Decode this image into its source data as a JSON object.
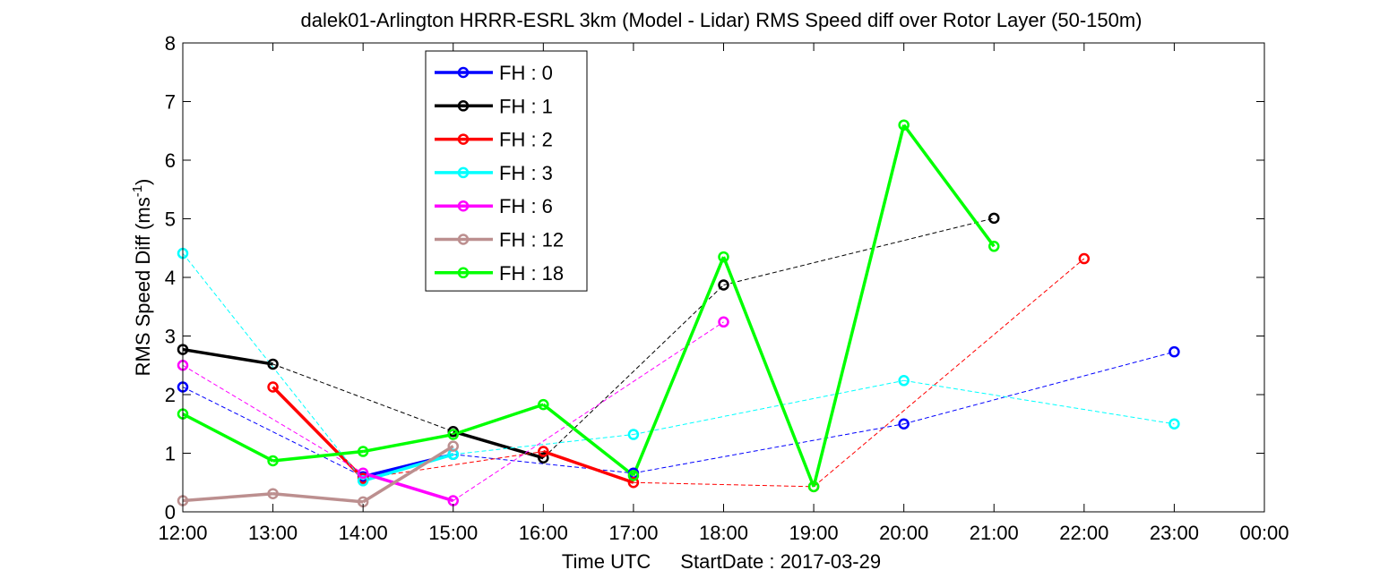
{
  "chart_data": {
    "type": "line",
    "title": "dalek01-Arlington HRRR-ESRL 3km (Model - Lidar) RMS Speed diff over Rotor Layer (50-150m)",
    "xlabel_prefix": "Time UTC",
    "xlabel_date": "StartDate : 2017-03-29",
    "ylabel": "RMS Speed Diff (ms",
    "ylabel_sup": "-1",
    "ylabel_end": ")",
    "xlim": [
      12,
      24
    ],
    "ylim": [
      0,
      8
    ],
    "xticks": [
      12,
      13,
      14,
      15,
      16,
      17,
      18,
      19,
      20,
      21,
      22,
      23,
      24
    ],
    "xtick_labels": [
      "12:00",
      "13:00",
      "14:00",
      "15:00",
      "16:00",
      "17:00",
      "18:00",
      "19:00",
      "20:00",
      "21:00",
      "22:00",
      "23:00",
      "00:00"
    ],
    "yticks": [
      0,
      1,
      2,
      3,
      4,
      5,
      6,
      7,
      8
    ],
    "ytick_labels": [
      "0",
      "1",
      "2",
      "3",
      "4",
      "5",
      "6",
      "7",
      "8"
    ],
    "grid": false,
    "legend_position": "top-left",
    "series": [
      {
        "name": "FH : 0",
        "color": "#0000ff",
        "x": [
          12,
          14,
          15,
          17,
          20,
          23
        ],
        "y": [
          2.13,
          0.6,
          0.98,
          0.66,
          1.5,
          2.73
        ],
        "solid": [
          false,
          true,
          false,
          false,
          false
        ]
      },
      {
        "name": "FH : 1",
        "color": "#000000",
        "x": [
          12,
          13,
          15,
          16,
          18,
          21
        ],
        "y": [
          2.77,
          2.52,
          1.37,
          0.92,
          3.87,
          5.01
        ],
        "solid": [
          true,
          false,
          true,
          false,
          false
        ]
      },
      {
        "name": "FH : 2",
        "color": "#ff0000",
        "x": [
          13,
          14,
          16,
          17,
          19,
          22
        ],
        "y": [
          2.13,
          0.57,
          1.03,
          0.5,
          0.43,
          4.32
        ],
        "solid": [
          true,
          false,
          true,
          false,
          false
        ]
      },
      {
        "name": "FH : 3",
        "color": "#00ffff",
        "x": [
          12,
          14,
          15,
          17,
          20,
          23
        ],
        "y": [
          4.41,
          0.53,
          0.98,
          1.32,
          2.24,
          1.5
        ],
        "solid": [
          false,
          true,
          false,
          false,
          false
        ]
      },
      {
        "name": "FH : 6",
        "color": "#ff00ff",
        "x": [
          12,
          14,
          15,
          18
        ],
        "y": [
          2.5,
          0.66,
          0.19,
          3.24
        ],
        "solid": [
          false,
          true,
          false
        ]
      },
      {
        "name": "FH : 12",
        "color": "#bc8f8f",
        "x": [
          12,
          13,
          14,
          15
        ],
        "y": [
          0.19,
          0.31,
          0.17,
          1.12
        ],
        "solid": [
          true,
          true,
          true
        ]
      },
      {
        "name": "FH : 18",
        "color": "#00ff00",
        "x": [
          12,
          13,
          14,
          15,
          16,
          17,
          18,
          19,
          20,
          21
        ],
        "y": [
          1.67,
          0.87,
          1.03,
          1.32,
          1.83,
          0.62,
          4.35,
          0.43,
          6.6,
          4.53
        ],
        "solid": [
          true,
          true,
          true,
          true,
          true,
          true,
          true,
          true,
          true
        ]
      }
    ]
  }
}
